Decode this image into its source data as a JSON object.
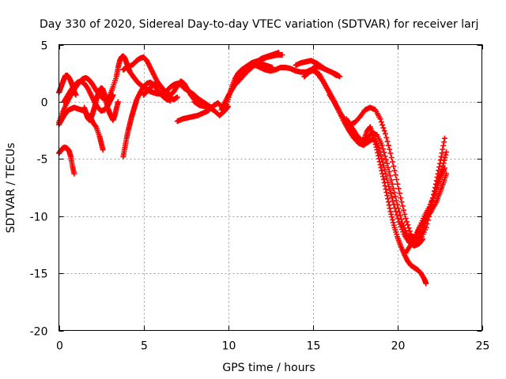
{
  "chart_data": {
    "type": "scatter",
    "title": "Day 330 of 2020, Sidereal Day-to-day VTEC variation (SDTVAR) for receiver larj",
    "xlabel": "GPS time / hours",
    "ylabel": "SDTVAR / TECUs",
    "xlim": [
      0,
      25
    ],
    "ylim": [
      -20,
      5
    ],
    "xticks": [
      0,
      5,
      10,
      15,
      20,
      25
    ],
    "yticks": [
      -20,
      -15,
      -10,
      -5,
      0,
      5
    ],
    "grid": true,
    "marker": "+",
    "color": "#ff0000",
    "series": [
      {
        "x": [
          0.0,
          0.1,
          0.2,
          0.3,
          0.4,
          0.5,
          0.6,
          0.7,
          0.8,
          0.9
        ],
        "y": [
          -4.5,
          -4.3,
          -4.1,
          -4.0,
          -4.0,
          -4.1,
          -4.3,
          -4.8,
          -5.6,
          -6.3
        ]
      },
      {
        "x": [
          0.0,
          0.15,
          0.3,
          0.45,
          0.6,
          0.75,
          0.9,
          1.1,
          1.3,
          1.5,
          1.7,
          1.9,
          2.0,
          2.2,
          2.4,
          2.5,
          2.6
        ],
        "y": [
          -2.0,
          -1.6,
          -1.2,
          -0.9,
          -0.7,
          -0.6,
          -0.5,
          -0.6,
          -0.7,
          -0.8,
          -1.1,
          -1.5,
          -1.8,
          -2.2,
          -3.0,
          -3.6,
          -4.2
        ]
      },
      {
        "x": [
          0.0,
          0.1,
          0.2,
          0.3,
          0.4,
          0.5,
          0.6,
          0.7,
          0.8,
          0.9,
          1.0
        ],
        "y": [
          0.8,
          1.2,
          1.6,
          2.0,
          2.3,
          2.3,
          2.1,
          1.8,
          1.4,
          0.9,
          0.6
        ]
      },
      {
        "x": [
          0.0,
          0.2,
          0.4,
          0.6,
          0.8,
          1.0,
          1.2,
          1.4,
          1.6,
          1.8,
          2.0,
          2.2,
          2.4,
          2.6,
          2.8,
          3.0,
          3.2,
          3.4,
          3.5,
          3.6,
          3.7,
          3.8,
          3.9,
          4.0,
          4.1,
          4.2,
          4.4,
          4.6,
          4.8,
          5.0,
          5.2,
          5.4,
          5.6,
          5.8,
          6.0,
          6.2,
          6.4,
          6.6,
          6.8,
          7.0,
          7.2,
          7.4,
          7.6,
          7.8,
          8.0,
          8.2,
          8.4,
          8.6,
          8.8,
          9.0
        ],
        "y": [
          -1.8,
          -1.0,
          -0.3,
          0.3,
          0.8,
          1.3,
          1.7,
          2.0,
          2.1,
          1.9,
          1.5,
          1.0,
          0.6,
          0.3,
          0.2,
          0.5,
          1.3,
          2.2,
          3.0,
          3.6,
          3.9,
          4.0,
          3.8,
          3.4,
          3.0,
          2.6,
          2.2,
          1.8,
          1.5,
          1.3,
          1.1,
          0.9,
          0.8,
          0.7,
          0.7,
          0.8,
          1.0,
          1.3,
          1.5,
          1.6,
          1.5,
          1.2,
          1.0,
          0.8,
          0.6,
          0.3,
          0.1,
          -0.1,
          -0.3,
          -0.5
        ]
      },
      {
        "x": [
          0.3,
          0.5,
          0.7,
          0.9,
          1.1,
          1.3,
          1.5,
          1.7,
          1.9,
          2.1,
          2.3,
          2.5,
          2.7,
          2.9,
          3.0,
          3.1,
          3.2
        ],
        "y": [
          0.0,
          0.5,
          1.0,
          1.4,
          1.7,
          1.8,
          1.6,
          1.2,
          0.6,
          0.0,
          -0.5,
          -0.8,
          -0.7,
          -0.3,
          0.0,
          0.3,
          0.6
        ]
      },
      {
        "x": [
          1.5,
          1.6,
          1.7,
          1.8,
          1.9,
          2.0,
          2.1,
          2.2,
          2.3,
          2.4,
          2.5,
          2.6,
          2.7,
          2.8,
          2.9,
          3.0,
          3.1,
          3.2,
          3.3,
          3.4,
          3.5
        ],
        "y": [
          -0.5,
          -1.0,
          -1.4,
          -1.6,
          -1.4,
          -1.0,
          -0.5,
          0.1,
          0.6,
          1.0,
          1.2,
          1.1,
          0.6,
          0.0,
          -0.6,
          -1.0,
          -1.3,
          -1.6,
          -1.2,
          -0.6,
          0.0
        ]
      },
      {
        "x": [
          3.8,
          3.9,
          4.0,
          4.1,
          4.2,
          4.3,
          4.4,
          4.5,
          4.6,
          4.8,
          5.0,
          5.2,
          5.4,
          5.6,
          5.8,
          6.0,
          6.2,
          6.4,
          6.6
        ],
        "y": [
          -4.8,
          -4.0,
          -3.2,
          -2.5,
          -1.9,
          -1.3,
          -0.8,
          -0.3,
          0.2,
          0.8,
          1.3,
          1.6,
          1.7,
          1.5,
          1.1,
          0.7,
          0.4,
          0.2,
          0.1
        ]
      },
      {
        "x": [
          3.8,
          4.0,
          4.2,
          4.4,
          4.6,
          4.8,
          5.0,
          5.2,
          5.4,
          5.6,
          5.8,
          6.0,
          6.2,
          6.4,
          6.6,
          6.8,
          7.0,
          7.2,
          7.4,
          7.6,
          7.8,
          8.0,
          8.2,
          8.4,
          8.6
        ],
        "y": [
          2.8,
          3.0,
          3.1,
          3.3,
          3.6,
          3.8,
          3.9,
          3.6,
          3.0,
          2.4,
          1.8,
          1.4,
          1.0,
          0.7,
          0.6,
          0.9,
          1.4,
          1.8,
          1.6,
          1.1,
          0.6,
          0.2,
          0.0,
          -0.1,
          -0.2
        ]
      },
      {
        "x": [
          5.0,
          5.2,
          5.4,
          5.6,
          5.8,
          6.0,
          6.2,
          6.4,
          6.6,
          6.8,
          7.0
        ],
        "y": [
          0.6,
          0.9,
          1.2,
          1.5,
          1.6,
          1.4,
          1.0,
          0.6,
          0.3,
          0.2,
          0.4
        ]
      },
      {
        "x": [
          7.0,
          7.3,
          7.6,
          7.9,
          8.2,
          8.5,
          8.8,
          9.0,
          9.2,
          9.4,
          9.6,
          9.8,
          10.0
        ],
        "y": [
          -1.7,
          -1.5,
          -1.4,
          -1.3,
          -1.2,
          -1.0,
          -0.8,
          -0.5,
          -0.3,
          -0.1,
          -0.4,
          -0.8,
          -0.4
        ]
      },
      {
        "x": [
          8.0,
          8.3,
          8.6,
          8.9,
          9.2,
          9.5,
          9.8,
          10.0,
          10.2,
          10.4,
          10.6,
          10.8,
          11.0,
          11.2,
          11.4,
          11.6,
          11.8,
          12.0,
          12.2,
          12.4,
          12.6,
          12.8,
          13.0
        ],
        "y": [
          0.0,
          -0.3,
          -0.4,
          -0.5,
          -0.8,
          -1.2,
          -0.8,
          0.2,
          1.2,
          2.0,
          2.5,
          2.8,
          3.0,
          3.2,
          3.4,
          3.5,
          3.6,
          3.8,
          3.9,
          4.0,
          4.1,
          4.2,
          4.3
        ]
      },
      {
        "x": [
          9.6,
          9.8,
          10.0,
          10.2,
          10.4,
          10.6,
          10.8,
          11.0,
          11.2,
          11.4,
          11.6,
          11.8,
          12.0,
          12.2,
          12.4,
          12.6
        ],
        "y": [
          -0.7,
          -0.1,
          0.5,
          1.0,
          1.5,
          1.9,
          2.3,
          2.6,
          2.9,
          3.1,
          3.2,
          3.3,
          3.3,
          3.2,
          3.1,
          3.0
        ]
      },
      {
        "x": [
          10.5,
          10.8,
          11.1,
          11.4,
          11.7,
          12.0,
          12.3,
          12.6,
          12.9,
          13.2
        ],
        "y": [
          1.6,
          2.1,
          2.6,
          3.0,
          3.4,
          3.7,
          3.9,
          4.0,
          4.1,
          4.1
        ]
      },
      {
        "x": [
          11.0,
          11.3,
          11.6,
          11.9,
          12.2,
          12.5,
          12.8,
          13.1,
          13.4,
          13.7,
          14.0,
          14.3,
          14.6,
          14.9,
          15.2,
          15.5,
          15.8,
          16.1,
          16.4
        ],
        "y": [
          2.8,
          3.1,
          3.2,
          3.0,
          2.8,
          2.7,
          2.8,
          3.0,
          3.0,
          2.9,
          2.7,
          2.6,
          2.6,
          2.8,
          3.1,
          3.0,
          2.8,
          2.6,
          2.3
        ]
      },
      {
        "x": [
          14.0,
          14.3,
          14.6,
          14.9,
          15.2,
          15.5,
          15.8,
          16.1,
          16.4,
          16.6
        ],
        "y": [
          3.2,
          3.4,
          3.5,
          3.6,
          3.4,
          3.1,
          2.8,
          2.6,
          2.4,
          2.2
        ]
      },
      {
        "x": [
          14.5,
          14.8,
          15.1,
          15.4,
          15.7,
          16.0,
          16.3,
          16.6,
          16.9,
          17.2,
          17.5,
          17.8,
          18.0,
          18.2,
          18.4,
          18.6,
          18.8,
          19.0,
          19.2,
          19.4,
          19.6,
          19.8,
          20.0,
          20.2,
          20.4,
          20.6,
          20.8,
          21.0,
          21.2,
          21.4,
          21.6,
          21.7
        ],
        "y": [
          2.2,
          2.6,
          2.8,
          2.4,
          1.6,
          0.8,
          0.0,
          -0.9,
          -1.8,
          -2.6,
          -3.2,
          -3.6,
          -3.4,
          -2.6,
          -2.2,
          -3.0,
          -4.2,
          -5.5,
          -6.8,
          -8.2,
          -9.6,
          -10.8,
          -11.8,
          -12.6,
          -13.3,
          -13.9,
          -14.3,
          -14.5,
          -14.7,
          -15.0,
          -15.5,
          -15.9
        ]
      },
      {
        "x": [
          15.0,
          15.3,
          15.6,
          15.9,
          16.2,
          16.5,
          16.8,
          17.1,
          17.4,
          17.7,
          18.0,
          18.3,
          18.6,
          18.9,
          19.2,
          19.5,
          19.8,
          20.1,
          20.4,
          20.7,
          21.0,
          21.3,
          21.5
        ],
        "y": [
          2.8,
          2.4,
          1.8,
          1.0,
          0.2,
          -0.7,
          -1.6,
          -2.4,
          -3.1,
          -3.6,
          -3.8,
          -3.5,
          -3.2,
          -4.0,
          -5.6,
          -7.4,
          -9.0,
          -10.5,
          -11.6,
          -12.3,
          -12.6,
          -12.4,
          -12.0
        ]
      },
      {
        "x": [
          16.0,
          16.3,
          16.6,
          16.9,
          17.2,
          17.5,
          17.8,
          18.1,
          18.4,
          18.7,
          19.0,
          19.3,
          19.6,
          19.9,
          20.2,
          20.5,
          20.8,
          21.1,
          21.4,
          21.7,
          22.0,
          22.2,
          22.4,
          22.6,
          22.8
        ],
        "y": [
          0.6,
          -0.1,
          -0.9,
          -1.6,
          -2.0,
          -1.8,
          -1.3,
          -0.7,
          -0.5,
          -0.7,
          -1.5,
          -2.8,
          -4.5,
          -6.4,
          -8.4,
          -10.2,
          -11.6,
          -12.2,
          -12.0,
          -11.0,
          -9.4,
          -7.8,
          -6.3,
          -4.8,
          -3.2
        ]
      },
      {
        "x": [
          17.0,
          17.3,
          17.6,
          17.9,
          18.2,
          18.5,
          18.8,
          19.1,
          19.4,
          19.7,
          20.0,
          20.3,
          20.6,
          20.9,
          21.2,
          21.5,
          21.8,
          22.1,
          22.4,
          22.7,
          22.9
        ],
        "y": [
          -1.5,
          -2.2,
          -2.9,
          -3.4,
          -3.2,
          -2.7,
          -2.9,
          -3.8,
          -5.4,
          -7.2,
          -9.0,
          -10.6,
          -11.7,
          -12.2,
          -12.0,
          -11.2,
          -9.8,
          -8.4,
          -7.0,
          -5.6,
          -4.4
        ]
      },
      {
        "x": [
          20.5,
          20.8,
          21.1,
          21.4,
          21.7,
          22.0,
          22.3,
          22.5,
          22.7,
          22.9
        ],
        "y": [
          -13.2,
          -12.5,
          -11.6,
          -10.8,
          -10.2,
          -9.6,
          -8.8,
          -8.0,
          -7.2,
          -6.3
        ]
      },
      {
        "x": [
          21.0,
          21.3,
          21.6,
          21.9,
          22.2,
          22.4,
          22.6,
          22.8
        ],
        "y": [
          -12.0,
          -11.0,
          -10.0,
          -9.2,
          -8.2,
          -7.3,
          -6.4,
          -5.8
        ]
      }
    ]
  }
}
